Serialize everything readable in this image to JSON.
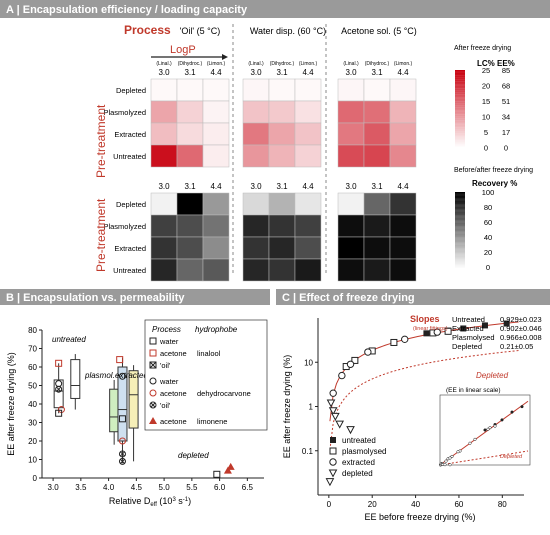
{
  "panelA": {
    "title": "A | Encapsulation efficiency / loading capacity",
    "process_label": "Process",
    "logp_label": "LogP",
    "pretreatment_label": "Pre-treatment",
    "columns": [
      {
        "name": "'Oil' (5 °C)"
      },
      {
        "name": "Water disp. (60 °C)"
      },
      {
        "name": "Acetone sol. (5 °C)"
      }
    ],
    "hydrophobes": [
      "(Linal.)",
      "(Dihydroc.)",
      "(Limon.)"
    ],
    "logp_values": [
      "3.0",
      "3.1",
      "4.4"
    ],
    "rows": [
      "Depleted",
      "Plasmolyzed",
      "Extracted",
      "Untreated"
    ],
    "legend_top": {
      "title": "After freeze drying",
      "col1": "LC%",
      "col2": "EE%",
      "lc": [
        "25",
        "20",
        "15",
        "10",
        "5",
        "0"
      ],
      "ee": [
        "85",
        "68",
        "51",
        "34",
        "17",
        "0"
      ]
    },
    "legend_bottom": {
      "title": "Before/after freeze drying",
      "subtitle": "Recovery %",
      "ticks": [
        "100",
        "80",
        "60",
        "40",
        "20",
        "0"
      ]
    }
  },
  "panelB": {
    "title": "B | Encapsulation vs. permeability",
    "ylabel": "EE after freeze drying (%)",
    "xlabel": "Relative D",
    "xlabel_sub": "eff",
    "xlabel_unit": "(10",
    "xlabel_exp": "3",
    "xlabel_unit2": " s",
    "xlabel_exp2": "-1",
    "xlabel_end": ")",
    "ann_untreated": "untreated",
    "ann_plasmol": "plasmol.",
    "ann_extracted": "extracted",
    "ann_depleted": "depleted",
    "legend": {
      "h1": "Process",
      "h2": "hydrophobe",
      "items": [
        {
          "process": "water",
          "hydro": ""
        },
        {
          "process": "acetone",
          "hydro": "linalool"
        },
        {
          "process": "'oil'",
          "hydro": ""
        },
        {
          "process": "water",
          "hydro": ""
        },
        {
          "process": "acetone",
          "hydro": "dehydrocarvone"
        },
        {
          "process": "'oil'",
          "hydro": ""
        },
        {
          "process": "acetone",
          "hydro": "limonene"
        }
      ]
    }
  },
  "panelC": {
    "title": "C | Effect of freeze drying",
    "ylabel": "EE after freeze drying (%)",
    "xlabel": "EE before freeze drying (%)",
    "slopes_title": "Slopes",
    "slopes_sub": "(linear fittings)",
    "slopes": [
      {
        "name": "Untreated",
        "value": "0.929±0.023"
      },
      {
        "name": "Extracted",
        "value": "0.902±0.046"
      },
      {
        "name": "Plasmolysed",
        "value": "0.966±0.008"
      },
      {
        "name": "Depleted",
        "value": "0.21±0.05"
      }
    ],
    "depleted_curve_label": "Depleted",
    "inset_label": "(EE in linear scale)",
    "inset_depleted": "Depleted",
    "legend": [
      "untreated",
      "plasmolysed",
      "extracted",
      "depleted"
    ]
  },
  "chart_data": [
    {
      "type": "heatmap",
      "title": "A | Encapsulation efficiency / loading capacity",
      "metric": "EE% after freeze drying",
      "rows": [
        "Depleted",
        "Plasmolyzed",
        "Extracted",
        "Untreated"
      ],
      "cols": [
        "3.0",
        "3.1",
        "4.4"
      ],
      "groups": [
        {
          "name": "'Oil' (5 °C)",
          "values": [
            [
              2,
              2,
              2
            ],
            [
              30,
              15,
              4
            ],
            [
              22,
              12,
              6
            ],
            [
              80,
              50,
              6
            ]
          ]
        },
        {
          "name": "Water disp. (60 °C)",
          "values": [
            [
              3,
              2,
              2
            ],
            [
              20,
              18,
              10
            ],
            [
              45,
              30,
              20
            ],
            [
              35,
              25,
              15
            ]
          ]
        },
        {
          "name": "Acetone sol. (5 °C)",
          "values": [
            [
              3,
              2,
              3
            ],
            [
              50,
              48,
              25
            ],
            [
              45,
              55,
              30
            ],
            [
              60,
              62,
              40
            ]
          ]
        }
      ],
      "scale": [
        0,
        85
      ]
    },
    {
      "type": "heatmap",
      "title": "Recovery %",
      "rows": [
        "Depleted",
        "Plasmolyzed",
        "Extracted",
        "Untreated"
      ],
      "cols": [
        "3.0",
        "3.1",
        "4.4"
      ],
      "groups": [
        {
          "name": "'Oil' (5 °C)",
          "values": [
            [
              5,
              100,
              40
            ],
            [
              75,
              70,
              55
            ],
            [
              80,
              70,
              45
            ],
            [
              85,
              60,
              65
            ]
          ]
        },
        {
          "name": "Water disp. (60 °C)",
          "values": [
            [
              15,
              30,
              10
            ],
            [
              85,
              80,
              75
            ],
            [
              80,
              85,
              70
            ],
            [
              85,
              80,
              90
            ]
          ]
        },
        {
          "name": "Acetone sol. (5 °C)",
          "values": [
            [
              5,
              60,
              80
            ],
            [
              95,
              90,
              95
            ],
            [
              100,
              95,
              95
            ],
            [
              95,
              90,
              95
            ]
          ]
        }
      ],
      "scale": [
        0,
        100
      ]
    },
    {
      "type": "box",
      "title": "B | Encapsulation vs. permeability",
      "xlim": [
        2.8,
        6.8
      ],
      "ylim": [
        0,
        80
      ],
      "xticks": [
        "3.0",
        "3.5",
        "4.0",
        "4.5",
        "5.0",
        "5.5",
        "6.0",
        "6.5"
      ],
      "yticks": [
        "0",
        "10",
        "20",
        "30",
        "40",
        "50",
        "60",
        "70",
        "80"
      ],
      "boxes": [
        {
          "x": 3.1,
          "group": "untreated",
          "q1": 38,
          "median": 47,
          "q3": 53,
          "low": 35,
          "high": 62,
          "fill": "#ffffff"
        },
        {
          "x": 3.4,
          "group": "untreated",
          "q1": 43,
          "median": 50,
          "q3": 64,
          "low": 37,
          "high": 67,
          "fill": "#ffffff"
        },
        {
          "x": 4.1,
          "group": "plasmol.",
          "q1": 25,
          "median": 33,
          "q3": 48,
          "low": 18,
          "high": 53,
          "fill": "#cfeec0"
        },
        {
          "x": 4.25,
          "group": "extracted",
          "q1": 20,
          "median": 37,
          "q3": 60,
          "low": 8,
          "high": 65,
          "fill": "#cfe0f0"
        },
        {
          "x": 4.45,
          "group": "extracted",
          "q1": 27,
          "median": 45,
          "q3": 58,
          "low": 9,
          "high": 61,
          "fill": "#f6efb8"
        }
      ],
      "points": [
        {
          "x": 3.1,
          "y": 62,
          "marker": "square-red"
        },
        {
          "x": 3.1,
          "y": 51,
          "marker": "circle"
        },
        {
          "x": 3.1,
          "y": 48,
          "marker": "circle-x"
        },
        {
          "x": 3.15,
          "y": 37,
          "marker": "circle-red"
        },
        {
          "x": 3.1,
          "y": 35,
          "marker": "square"
        },
        {
          "x": 4.2,
          "y": 64,
          "marker": "square-red"
        },
        {
          "x": 4.25,
          "y": 55,
          "marker": "circle"
        },
        {
          "x": 4.25,
          "y": 32,
          "marker": "square"
        },
        {
          "x": 4.25,
          "y": 20,
          "marker": "circle-red"
        },
        {
          "x": 4.25,
          "y": 13,
          "marker": "circle-x"
        },
        {
          "x": 4.25,
          "y": 9,
          "marker": "circle-x"
        },
        {
          "x": 5.95,
          "y": 2,
          "marker": "square"
        },
        {
          "x": 6.15,
          "y": 4,
          "marker": "triangle-red"
        },
        {
          "x": 6.2,
          "y": 6,
          "marker": "triangle-red"
        }
      ]
    },
    {
      "type": "scatter",
      "title": "C | Effect of freeze drying",
      "xlim": [
        -5,
        90
      ],
      "ylim_log": [
        0.01,
        100
      ],
      "xticks": [
        "0",
        "20",
        "40",
        "60",
        "80"
      ],
      "yticks": [
        "0.1",
        "1",
        "10"
      ],
      "series": [
        {
          "name": "untreated",
          "points": [
            [
              45,
              45
            ],
            [
              55,
              52
            ],
            [
              62,
              58
            ],
            [
              72,
              68
            ],
            [
              82,
              75
            ]
          ]
        },
        {
          "name": "plasmolysed",
          "points": [
            [
              8,
              8
            ],
            [
              12,
              11
            ],
            [
              20,
              18
            ],
            [
              30,
              28
            ],
            [
              48,
              46
            ],
            [
              55,
              50
            ]
          ]
        },
        {
          "name": "extracted",
          "points": [
            [
              2,
              2
            ],
            [
              6,
              5
            ],
            [
              10,
              9
            ],
            [
              18,
              17
            ],
            [
              35,
              33
            ],
            [
              50,
              48
            ]
          ]
        },
        {
          "name": "depleted",
          "points": [
            [
              0.5,
              0.02
            ],
            [
              1,
              1.2
            ],
            [
              2,
              0.8
            ],
            [
              3,
              0.6
            ],
            [
              5,
              0.4
            ],
            [
              10,
              0.3
            ]
          ]
        }
      ]
    }
  ]
}
